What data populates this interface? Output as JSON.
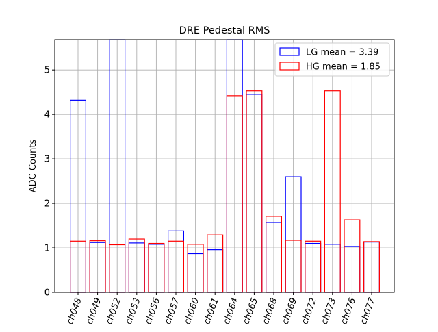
{
  "chart_data": {
    "type": "bar",
    "title": "DRE Pedestal RMS",
    "xlabel": "",
    "ylabel": "ADC Counts",
    "ylim": [
      0,
      5.68
    ],
    "yticks": [
      0,
      1,
      2,
      3,
      4,
      5
    ],
    "grid": true,
    "legend_position": "top-right",
    "categories": [
      "ch048",
      "ch049",
      "ch052",
      "ch053",
      "ch056",
      "ch057",
      "ch060",
      "ch061",
      "ch064",
      "ch065",
      "ch068",
      "ch069",
      "ch072",
      "ch073",
      "ch076",
      "ch077"
    ],
    "series": [
      {
        "name": "LG mean = 3.39",
        "color": "#0000ff",
        "style": "unfilled",
        "values": [
          4.32,
          1.12,
          6.0,
          1.11,
          1.08,
          1.38,
          0.87,
          0.96,
          6.0,
          4.45,
          1.57,
          2.6,
          1.1,
          1.08,
          1.03,
          1.13
        ]
      },
      {
        "name": "HG mean = 1.85",
        "color": "#ff0000",
        "style": "unfilled",
        "values": [
          1.15,
          1.16,
          1.07,
          1.2,
          1.1,
          1.15,
          1.08,
          1.29,
          4.42,
          4.53,
          1.71,
          1.17,
          1.15,
          4.53,
          1.63,
          1.14
        ]
      }
    ]
  }
}
